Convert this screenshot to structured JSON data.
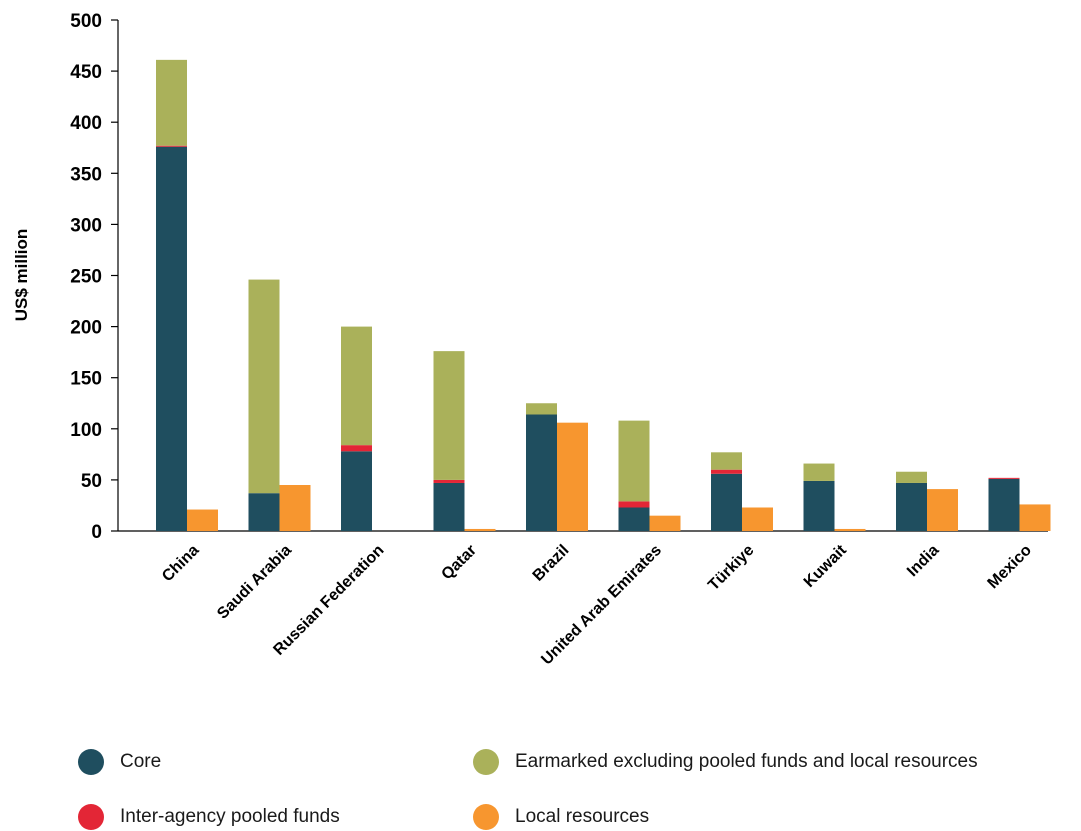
{
  "chart_data": {
    "type": "bar",
    "stacked": true,
    "ylabel": "US$ million",
    "ylim": [
      0,
      500
    ],
    "yticks": [
      0,
      50,
      100,
      150,
      200,
      250,
      300,
      350,
      400,
      450,
      500
    ],
    "grid": false,
    "legend_position": "bottom",
    "categories": [
      "China",
      "Saudi Arabia",
      "Russian Federation",
      "Qatar",
      "Brazil",
      "United Arab Emirates",
      "Türkiye",
      "Kuwait",
      "India",
      "Mexico"
    ],
    "series": [
      {
        "name": "Core",
        "stack": "main",
        "color": "#1f4e5f",
        "values": [
          376,
          37,
          78,
          47,
          114,
          23,
          56,
          49,
          47,
          51
        ]
      },
      {
        "name": "Inter-agency pooled funds",
        "stack": "main",
        "color": "#e32636",
        "values": [
          1,
          0,
          6,
          3,
          0,
          6,
          4,
          0,
          0,
          1
        ]
      },
      {
        "name": "Earmarked excluding pooled funds and local resources",
        "stack": "main",
        "color": "#aab15a",
        "values": [
          84,
          209,
          116,
          126,
          11,
          79,
          17,
          17,
          11,
          0
        ]
      },
      {
        "name": "Local resources",
        "stack": "local",
        "color": "#f7962f",
        "values": [
          21,
          45,
          0,
          2,
          106,
          15,
          23,
          2,
          41,
          26
        ]
      }
    ]
  },
  "legend": {
    "items": [
      {
        "label": "Core",
        "color": "#1f4e5f"
      },
      {
        "label": "Earmarked excluding pooled funds and local resources",
        "color": "#aab15a"
      },
      {
        "label": "Inter-agency pooled funds",
        "color": "#e32636"
      },
      {
        "label": "Local resources",
        "color": "#f7962f"
      }
    ]
  }
}
